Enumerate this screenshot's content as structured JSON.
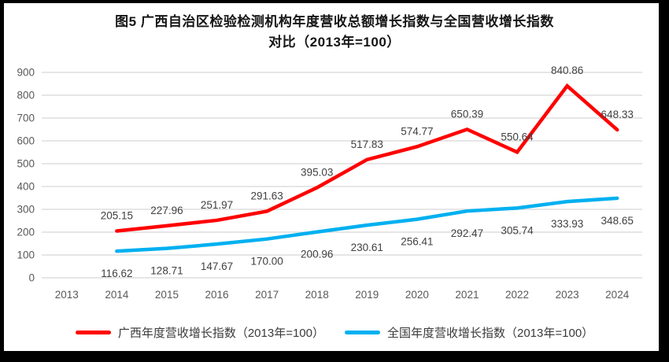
{
  "chart_data": {
    "type": "line",
    "title": "图5  广西自治区检验检测机构年度营收总额增长指数与全国营收增长指数对比（2013年=100）",
    "categories": [
      "2013",
      "2014",
      "2015",
      "2016",
      "2017",
      "2018",
      "2019",
      "2020",
      "2021",
      "2022",
      "2023",
      "2024"
    ],
    "series": [
      {
        "id": "guangxi-index",
        "name": "广西年度营收增长指数（2013年=100）",
        "color": "#FF0000",
        "label_position": "above",
        "values": [
          null,
          205.15,
          227.96,
          251.97,
          291.63,
          395.03,
          517.83,
          574.77,
          650.39,
          550.64,
          840.86,
          648.33
        ]
      },
      {
        "id": "national-index",
        "name": "全国年度营收增长指数（2013年=100）",
        "color": "#00B0F0",
        "label_position": "below",
        "values": [
          null,
          116.62,
          128.71,
          147.67,
          170.0,
          200.96,
          230.61,
          256.41,
          292.47,
          305.74,
          333.93,
          348.65
        ]
      }
    ],
    "xlabel": "",
    "ylabel": "",
    "ylim": [
      0,
      900
    ],
    "ytick_interval": 100,
    "grid": true,
    "data_labels": true,
    "data_label_decimals": 2,
    "legend_position": "bottom",
    "colors": {
      "gridline": "#DDDDDD",
      "axis_tick_text": "#595959",
      "data_label_text": "#404040"
    }
  }
}
